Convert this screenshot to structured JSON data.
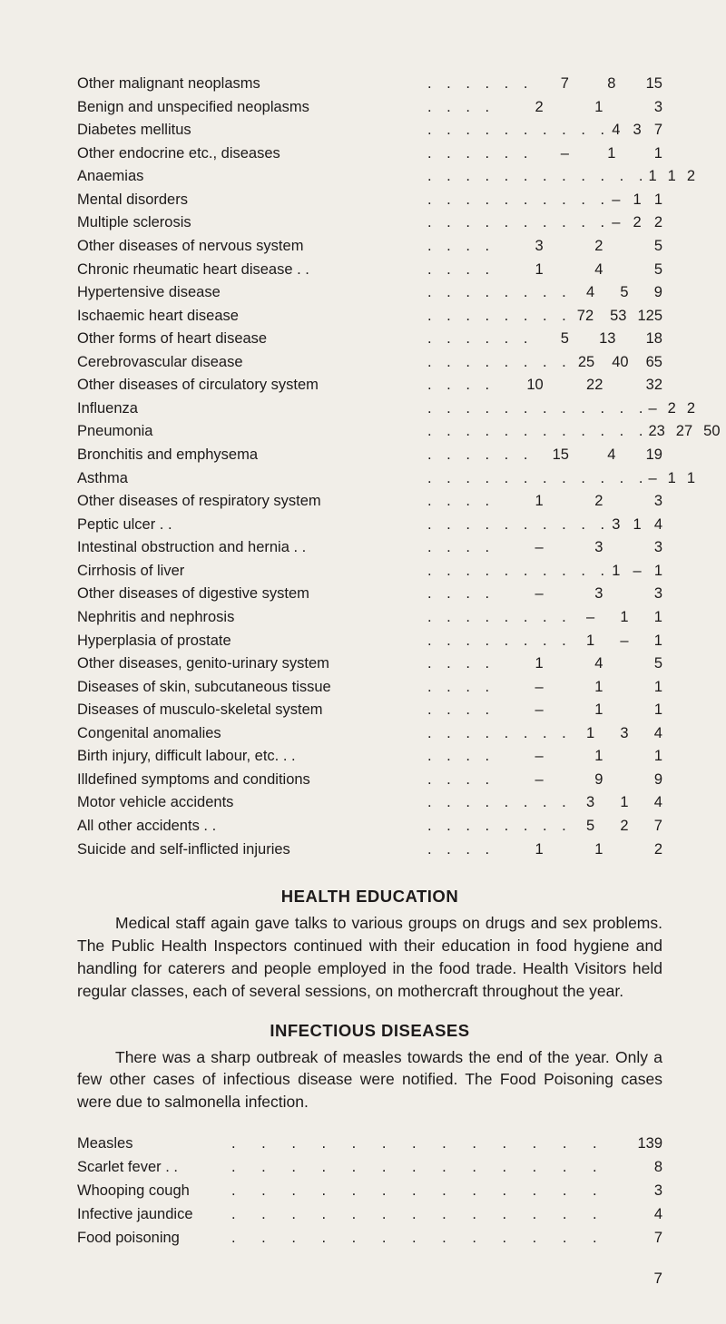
{
  "mortality": {
    "rows": [
      {
        "label": "Other malignant neoplasms",
        "dots": ". . . . . .",
        "c1": "7",
        "c2": "8",
        "c3": "15"
      },
      {
        "label": "Benign and unspecified neoplasms",
        "dots": ". . . .",
        "c1": "2",
        "c2": "1",
        "c3": "3"
      },
      {
        "label": "Diabetes mellitus",
        "dots": ". . . . . . . . . .",
        "c1": "4",
        "c2": "3",
        "c3": "7"
      },
      {
        "label": "Other endocrine etc., diseases",
        "dots": ". . . . . .",
        "c1": "–",
        "c2": "1",
        "c3": "1"
      },
      {
        "label": "Anaemias",
        "dots": ". . . . . . . . . . . .",
        "c1": "1",
        "c2": "1",
        "c3": "2"
      },
      {
        "label": "Mental disorders",
        "dots": ". . . . . . . . . .",
        "c1": "–",
        "c2": "1",
        "c3": "1"
      },
      {
        "label": "Multiple sclerosis",
        "dots": ". . . . . . . . . .",
        "c1": "–",
        "c2": "2",
        "c3": "2"
      },
      {
        "label": "Other diseases of nervous system",
        "dots": ". . . .",
        "c1": "3",
        "c2": "2",
        "c3": "5"
      },
      {
        "label": "Chronic rheumatic heart disease . .",
        "dots": ". . . .",
        "c1": "1",
        "c2": "4",
        "c3": "5"
      },
      {
        "label": "Hypertensive disease",
        "dots": ". . . . . . . .",
        "c1": "4",
        "c2": "5",
        "c3": "9"
      },
      {
        "label": "Ischaemic heart disease",
        "dots": ". . . . . . . .",
        "c1": "72",
        "c2": "53",
        "c3": "125"
      },
      {
        "label": "Other forms of heart disease",
        "dots": ". . . . . .",
        "c1": "5",
        "c2": "13",
        "c3": "18"
      },
      {
        "label": "Cerebrovascular disease",
        "dots": ". . . . . . . .",
        "c1": "25",
        "c2": "40",
        "c3": "65"
      },
      {
        "label": "Other diseases of circulatory system",
        "dots": ". . . .",
        "c1": "10",
        "c2": "22",
        "c3": "32"
      },
      {
        "label": "Influenza",
        "dots": ". . . . . . . . . . . .",
        "c1": "–",
        "c2": "2",
        "c3": "2"
      },
      {
        "label": "Pneumonia",
        "dots": ". . . . . . . . . . . .",
        "c1": "23",
        "c2": "27",
        "c3": "50"
      },
      {
        "label": "Bronchitis and emphysema",
        "dots": ". . . . . .",
        "c1": "15",
        "c2": "4",
        "c3": "19"
      },
      {
        "label": "Asthma",
        "dots": ". . . . . . . . . . . .",
        "c1": "–",
        "c2": "1",
        "c3": "1"
      },
      {
        "label": "Other diseases of respiratory system",
        "dots": ". . . .",
        "c1": "1",
        "c2": "2",
        "c3": "3"
      },
      {
        "label": "Peptic ulcer . .",
        "dots": ". . . . . . . . . .",
        "c1": "3",
        "c2": "1",
        "c3": "4"
      },
      {
        "label": "Intestinal obstruction and hernia . .",
        "dots": ". . . .",
        "c1": "–",
        "c2": "3",
        "c3": "3"
      },
      {
        "label": "Cirrhosis of liver",
        "dots": ". . . . . . . . . .",
        "c1": "1",
        "c2": "–",
        "c3": "1"
      },
      {
        "label": "Other diseases of digestive system",
        "dots": ". . . .",
        "c1": "–",
        "c2": "3",
        "c3": "3"
      },
      {
        "label": "Nephritis and nephrosis",
        "dots": ". . . . . . . .",
        "c1": "–",
        "c2": "1",
        "c3": "1"
      },
      {
        "label": "Hyperplasia of prostate",
        "dots": ". . . . . . . .",
        "c1": "1",
        "c2": "–",
        "c3": "1"
      },
      {
        "label": "Other diseases, genito-urinary system",
        "dots": ". . . .",
        "c1": "1",
        "c2": "4",
        "c3": "5"
      },
      {
        "label": "Diseases of skin, subcutaneous tissue",
        "dots": ". . . .",
        "c1": "–",
        "c2": "1",
        "c3": "1"
      },
      {
        "label": "Diseases of musculo-skeletal system",
        "dots": ". . . .",
        "c1": "–",
        "c2": "1",
        "c3": "1"
      },
      {
        "label": "Congenital anomalies",
        "dots": ". . . . . . . .",
        "c1": "1",
        "c2": "3",
        "c3": "4"
      },
      {
        "label": "Birth injury, difficult labour, etc. . .",
        "dots": ". . . .",
        "c1": "–",
        "c2": "1",
        "c3": "1"
      },
      {
        "label": "Illdefined symptoms and conditions",
        "dots": ". . . .",
        "c1": "–",
        "c2": "9",
        "c3": "9"
      },
      {
        "label": "Motor vehicle accidents",
        "dots": ". . . . . . . .",
        "c1": "3",
        "c2": "1",
        "c3": "4"
      },
      {
        "label": "All other accidents . .",
        "dots": ". . . . . . . .",
        "c1": "5",
        "c2": "2",
        "c3": "7"
      },
      {
        "label": "Suicide and self-inflicted injuries",
        "dots": ". . . .",
        "c1": "1",
        "c2": "1",
        "c3": "2"
      }
    ]
  },
  "health_education": {
    "heading": "HEALTH EDUCATION",
    "para": "Medical staff again gave talks to various groups on drugs and sex problems. The Public Health Inspectors continued with their education in food hygiene and handling for caterers and people employed in the food trade. Health Visitors held regular classes, each of several sessions, on mothercraft throughout the year."
  },
  "infectious": {
    "heading": "INFECTIOUS DISEASES",
    "para": "There was a sharp outbreak of measles towards the end of the year. Only a few other cases of infectious disease were notified. The Food Poisoning cases were due to salmonella infection.",
    "rows": [
      {
        "label": "Measles",
        "val": "139"
      },
      {
        "label": "Scarlet fever . .",
        "val": "8"
      },
      {
        "label": "Whooping cough",
        "val": "3"
      },
      {
        "label": "Infective jaundice",
        "val": "4"
      },
      {
        "label": "Food poisoning",
        "val": "7"
      }
    ]
  },
  "page_number": "7"
}
